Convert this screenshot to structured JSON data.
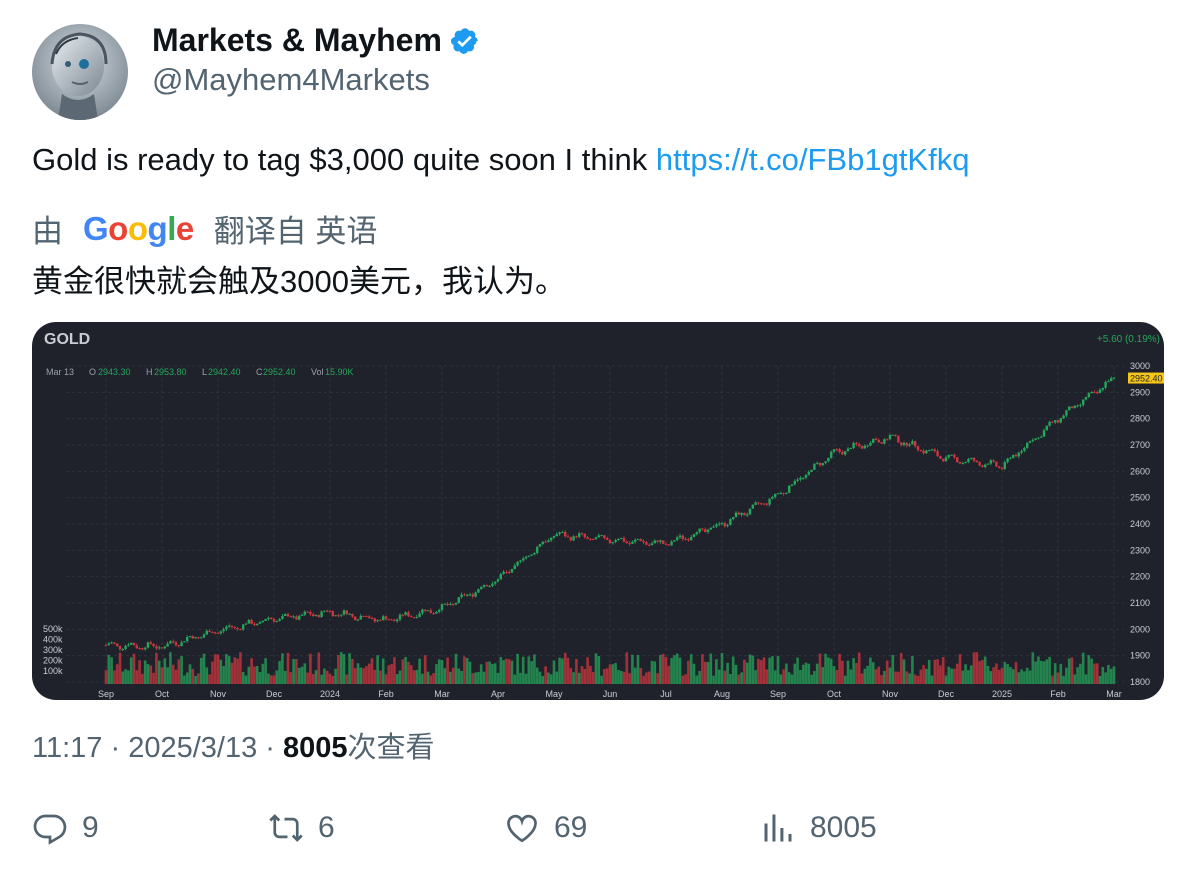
{
  "author": {
    "name": "Markets & Mayhem",
    "handle": "@Mayhem4Markets",
    "verified_icon": "verified-badge-icon"
  },
  "tweet": {
    "text": "Gold is ready to tag $3,000 quite soon I think ",
    "link": "https://t.co/FBb1gtKfkq"
  },
  "translation": {
    "by_label": "由",
    "provider": "Google",
    "from_label": "翻译自 英语",
    "text": "黄金很快就会触及3000美元，我认为。"
  },
  "chart": {
    "symbol": "GOLD",
    "change": "+5.60 (0.19%)",
    "last_price_label": "2952.40",
    "ohlc": {
      "date": "Mar 13",
      "o_label": "O",
      "o": "2943.30",
      "h_label": "H",
      "h": "2953.80",
      "l_label": "L",
      "l": "2942.40",
      "c_label": "C",
      "c": "2952.40",
      "vol_label": "Vol",
      "vol": "15.90K"
    },
    "colors": {
      "up": "#26a65b",
      "down": "#d1363f",
      "bg": "#1f222b",
      "grid": "#2f333d",
      "label": "#c9ccd3",
      "price_tag": "#f5c518"
    }
  },
  "chart_data": {
    "type": "line",
    "title": "GOLD",
    "x": [
      "Sep",
      "Oct",
      "Nov",
      "Dec",
      "2024",
      "Feb",
      "Mar",
      "Apr",
      "May",
      "Jun",
      "Jul",
      "Aug",
      "Sep",
      "Oct",
      "Nov",
      "Dec",
      "2025",
      "Feb",
      "Mar"
    ],
    "series": [
      {
        "values": [
          1940,
          1935,
          1995,
          2040,
          2065,
          2035,
          2080,
          2190,
          2360,
          2340,
          2325,
          2400,
          2510,
          2670,
          2730,
          2650,
          2620,
          2800,
          2952.4
        ]
      }
    ],
    "y_ticks": [
      1800,
      1900,
      2000,
      2100,
      2200,
      2300,
      2400,
      2500,
      2600,
      2700,
      2800,
      2900,
      3000
    ],
    "ylim": [
      1800,
      3000
    ],
    "volume_ticks": [
      "500k",
      "400k",
      "300k",
      "200k",
      "100k"
    ],
    "grid": true
  },
  "meta": {
    "time": "11:17",
    "sep1": " · ",
    "date": "2025/3/13",
    "sep2": " · ",
    "views": "8005",
    "views_label": "次查看"
  },
  "actions": {
    "replies": "9",
    "retweets": "6",
    "likes": "69",
    "views": "8005",
    "icons": [
      "reply-icon",
      "retweet-icon",
      "like-icon",
      "views-icon"
    ]
  }
}
